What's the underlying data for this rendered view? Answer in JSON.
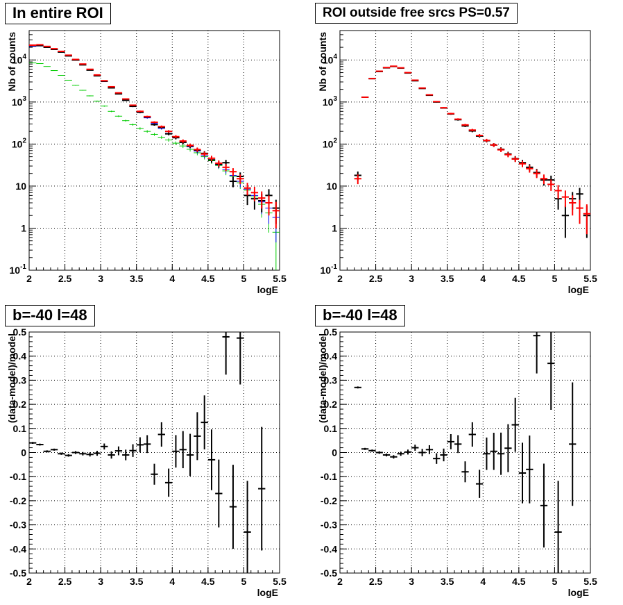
{
  "chart_data": [
    {
      "type": "scatter",
      "title": "In entire ROI",
      "xlabel": "logE",
      "ylabel": "Nb of counts",
      "xlim": [
        2,
        5.5
      ],
      "ylim": [
        0.1,
        50000
      ],
      "yscale": "log",
      "grid": true,
      "x_ticks": [
        "2",
        "2.5",
        "3",
        "3.5",
        "4",
        "4.5",
        "5",
        "5.5"
      ],
      "y_ticks": [
        "10^-1",
        "1",
        "10",
        "10^2",
        "10^3",
        "10^4"
      ],
      "series": [
        {
          "color": "#00cc00",
          "x": [
            2.05,
            2.15,
            2.25,
            2.35,
            2.45,
            2.55,
            2.65,
            2.75,
            2.85,
            2.95,
            3.05,
            3.15,
            3.25,
            3.35,
            3.45,
            3.55,
            3.65,
            3.75,
            3.85,
            3.95,
            4.05,
            4.15,
            4.25,
            4.35,
            4.45,
            4.55,
            4.65,
            4.75,
            4.85,
            4.95,
            5.05,
            5.15,
            5.25,
            5.35,
            5.45
          ],
          "y": [
            8500,
            8200,
            7000,
            5600,
            4300,
            3300,
            2500,
            1900,
            1400,
            1050,
            800,
            600,
            460,
            360,
            290,
            235,
            200,
            170,
            145,
            125,
            105,
            90,
            75,
            62,
            50,
            40,
            31,
            23,
            17,
            12,
            8,
            5.5,
            3.7,
            2.3,
            0.8
          ]
        },
        {
          "color": "#0000ff",
          "x": [
            2.05,
            2.15,
            2.25,
            2.35,
            2.45,
            2.55,
            2.65,
            2.75,
            2.85,
            2.95,
            3.05,
            3.15,
            3.25,
            3.35,
            3.45,
            3.55,
            3.65,
            3.75,
            3.85,
            3.95,
            4.05,
            4.15,
            4.25,
            4.35,
            4.45,
            4.55,
            4.65,
            4.75,
            4.85,
            4.95,
            5.05,
            5.15,
            5.25,
            5.35,
            5.45
          ],
          "y": [
            21000,
            21500,
            20000,
            18000,
            15500,
            12600,
            10000,
            7700,
            5800,
            4200,
            3050,
            2180,
            1550,
            1100,
            780,
            560,
            420,
            310,
            235,
            180,
            140,
            110,
            86,
            68,
            53,
            42,
            32,
            25,
            18,
            13,
            8.5,
            6,
            4.2,
            3,
            1.8
          ]
        },
        {
          "color": "#000000",
          "x": [
            2.05,
            2.15,
            2.25,
            2.35,
            2.45,
            2.55,
            2.65,
            2.75,
            2.85,
            2.95,
            3.05,
            3.15,
            3.25,
            3.35,
            3.45,
            3.55,
            3.65,
            3.75,
            3.85,
            3.95,
            4.05,
            4.15,
            4.25,
            4.35,
            4.45,
            4.55,
            4.65,
            4.75,
            4.85,
            4.95,
            5.05,
            5.15,
            5.25,
            5.35,
            5.45
          ],
          "y": [
            22000,
            22000,
            20100,
            17900,
            15400,
            12500,
            9950,
            7650,
            5750,
            4200,
            3120,
            2170,
            1560,
            1100,
            790,
            570,
            440,
            290,
            250,
            175,
            142,
            110,
            90,
            72,
            60,
            42,
            33,
            36,
            13,
            17,
            6,
            5,
            4.5,
            6,
            3
          ]
        },
        {
          "color": "#ff0000",
          "x": [
            2.05,
            2.15,
            2.25,
            2.35,
            2.45,
            2.55,
            2.65,
            2.75,
            2.85,
            2.95,
            3.05,
            3.15,
            3.25,
            3.35,
            3.45,
            3.55,
            3.65,
            3.75,
            3.85,
            3.95,
            4.05,
            4.15,
            4.25,
            4.35,
            4.45,
            4.55,
            4.65,
            4.75,
            4.85,
            4.95,
            5.05,
            5.15,
            5.25,
            5.35,
            5.45
          ],
          "y": [
            22500,
            23000,
            21000,
            18500,
            16000,
            13000,
            10300,
            8000,
            6000,
            4400,
            3200,
            2300,
            1650,
            1180,
            840,
            600,
            450,
            330,
            260,
            200,
            150,
            118,
            93,
            74,
            58,
            46,
            35,
            28,
            22,
            15,
            9,
            7,
            5.2,
            4,
            2.6
          ]
        }
      ]
    },
    {
      "type": "scatter",
      "title": "ROI outside free srcs PS=0.57",
      "xlabel": "logE",
      "ylabel": "Nb of counts",
      "xlim": [
        2,
        5.5
      ],
      "ylim": [
        0.1,
        50000
      ],
      "yscale": "log",
      "grid": true,
      "x_ticks": [
        "2",
        "2.5",
        "3",
        "3.5",
        "4",
        "4.5",
        "5",
        "5.5"
      ],
      "y_ticks": [
        "10^-1",
        "1",
        "10",
        "10^2",
        "10^3",
        "10^4"
      ],
      "series": [
        {
          "color": "#000000",
          "x": [
            2.25,
            2.35,
            2.45,
            2.55,
            2.65,
            2.75,
            2.85,
            2.95,
            3.05,
            3.15,
            3.25,
            3.35,
            3.45,
            3.55,
            3.65,
            3.75,
            3.85,
            3.95,
            4.05,
            4.15,
            4.25,
            4.35,
            4.45,
            4.55,
            4.65,
            4.75,
            4.85,
            4.95,
            5.05,
            5.15,
            5.25,
            5.35,
            5.45
          ],
          "y": [
            18,
            1300,
            3600,
            5300,
            6500,
            7000,
            6400,
            4900,
            3200,
            2100,
            1450,
            1000,
            720,
            520,
            380,
            270,
            205,
            155,
            120,
            95,
            75,
            58,
            45,
            36,
            28,
            21,
            14,
            14,
            5,
            2,
            5,
            6.5,
            2
          ]
        },
        {
          "color": "#ff0000",
          "x": [
            2.25,
            2.35,
            2.45,
            2.55,
            2.65,
            2.75,
            2.85,
            2.95,
            3.05,
            3.15,
            3.25,
            3.35,
            3.45,
            3.55,
            3.65,
            3.75,
            3.85,
            3.95,
            4.05,
            4.15,
            4.25,
            4.35,
            4.45,
            4.55,
            4.65,
            4.75,
            4.85,
            4.95,
            5.05,
            5.15,
            5.25,
            5.35,
            5.45
          ],
          "y": [
            15,
            1300,
            3600,
            5400,
            6600,
            7100,
            6500,
            5000,
            3300,
            2150,
            1480,
            1020,
            730,
            530,
            390,
            285,
            215,
            160,
            122,
            95,
            73,
            56,
            44,
            34,
            26,
            20,
            15,
            11,
            7.8,
            5.5,
            4,
            3,
            2.2
          ]
        }
      ]
    },
    {
      "type": "scatter",
      "title": "b=-40 l=48",
      "xlabel": "logE",
      "ylabel": "(data-model)/model",
      "xlim": [
        2,
        5.5
      ],
      "ylim": [
        -0.5,
        0.5
      ],
      "grid": true,
      "x_ticks": [
        "2",
        "2.5",
        "3",
        "3.5",
        "4",
        "4.5",
        "5",
        "5.5"
      ],
      "y_ticks": [
        "-0.5",
        "-0.4",
        "-0.3",
        "-0.2",
        "-0.1",
        "0",
        "0.1",
        "0.2",
        "0.3",
        "0.4",
        "0.5"
      ],
      "series": [
        {
          "color": "#000000",
          "x": [
            2.05,
            2.15,
            2.25,
            2.35,
            2.45,
            2.55,
            2.65,
            2.75,
            2.85,
            2.95,
            3.05,
            3.15,
            3.25,
            3.35,
            3.45,
            3.55,
            3.65,
            3.75,
            3.85,
            3.95,
            4.05,
            4.15,
            4.25,
            4.35,
            4.45,
            4.55,
            4.65,
            4.75,
            4.85,
            4.95,
            5.05,
            5.25
          ],
          "y": [
            0.04,
            0.033,
            0.005,
            0.012,
            -0.005,
            -0.012,
            0.0,
            -0.005,
            -0.008,
            -0.003,
            0.025,
            -0.01,
            0.007,
            -0.01,
            0.008,
            0.032,
            0.035,
            -0.09,
            0.075,
            -0.125,
            0.005,
            0.012,
            -0.01,
            0.068,
            0.125,
            -0.03,
            -0.17,
            0.48,
            -0.225,
            0.475,
            -0.33,
            -0.15
          ]
        }
      ]
    },
    {
      "type": "scatter",
      "title": "b=-40 l=48",
      "xlabel": "logE",
      "ylabel": "(data-model)/model",
      "xlim": [
        2,
        5.5
      ],
      "ylim": [
        -0.5,
        0.5
      ],
      "grid": true,
      "x_ticks": [
        "2",
        "2.5",
        "3",
        "3.5",
        "4",
        "4.5",
        "5",
        "5.5"
      ],
      "y_ticks": [
        "-0.5",
        "-0.4",
        "-0.3",
        "-0.2",
        "-0.1",
        "0",
        "0.1",
        "0.2",
        "0.3",
        "0.4",
        "0.5"
      ],
      "series": [
        {
          "color": "#000000",
          "x": [
            2.25,
            2.35,
            2.45,
            2.55,
            2.65,
            2.75,
            2.85,
            2.95,
            3.05,
            3.15,
            3.25,
            3.35,
            3.45,
            3.55,
            3.65,
            3.75,
            3.85,
            3.95,
            4.05,
            4.15,
            4.25,
            4.35,
            4.45,
            4.55,
            4.65,
            4.75,
            4.85,
            4.95,
            5.05,
            5.25
          ],
          "y": [
            0.27,
            0.015,
            0.008,
            0.0,
            -0.01,
            -0.018,
            -0.005,
            0.002,
            0.02,
            0.0,
            0.012,
            -0.025,
            -0.01,
            0.045,
            0.035,
            -0.08,
            0.075,
            -0.13,
            -0.005,
            0.005,
            -0.005,
            0.018,
            0.115,
            -0.085,
            -0.07,
            0.485,
            -0.22,
            0.37,
            -0.33,
            0.035
          ]
        }
      ]
    }
  ]
}
